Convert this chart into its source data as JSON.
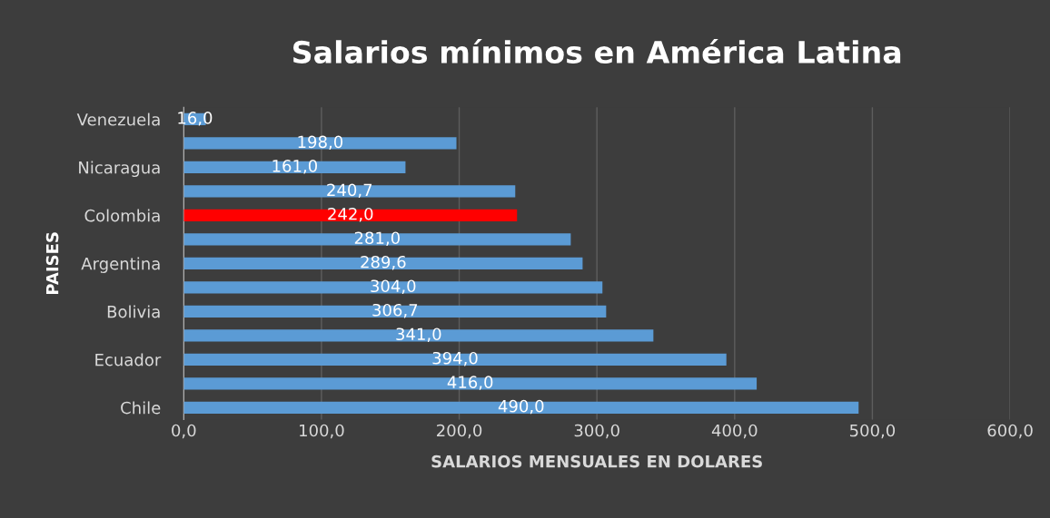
{
  "chart_data": {
    "type": "bar",
    "orientation": "horizontal",
    "title": "Salarios mínimos en América Latina",
    "xlabel": "SALARIOS MENSUALES EN DOLARES",
    "ylabel": "PAISES",
    "categories": [
      "Venezuela",
      null,
      "Nicaragua",
      null,
      "Colombia",
      null,
      "Argentina",
      null,
      "Bolivia",
      null,
      "Ecuador",
      null,
      "Chile"
    ],
    "values": [
      16.0,
      198.0,
      161.0,
      240.7,
      242.0,
      281.0,
      289.6,
      304.0,
      306.7,
      341.0,
      394.0,
      416.0,
      490.0
    ],
    "colors": [
      "#5b9bd5",
      "#5b9bd5",
      "#5b9bd5",
      "#5b9bd5",
      "#ff0000",
      "#5b9bd5",
      "#5b9bd5",
      "#5b9bd5",
      "#5b9bd5",
      "#5b9bd5",
      "#5b9bd5",
      "#5b9bd5",
      "#5b9bd5"
    ],
    "value_labels": [
      "16,0",
      "198,0",
      "161,0",
      "240,7",
      "242,0",
      "281,0",
      "289,6",
      "304,0",
      "306,7",
      "341,0",
      "394,0",
      "416,0",
      "490,0"
    ],
    "xlim": [
      0,
      600
    ],
    "xticks": [
      {
        "value": 0,
        "label": "0,0"
      },
      {
        "value": 100,
        "label": "100,0"
      },
      {
        "value": 200,
        "label": "200,0"
      },
      {
        "value": 300,
        "label": "300,0"
      },
      {
        "value": 400,
        "label": "400,0"
      },
      {
        "value": 500,
        "label": "500,0"
      },
      {
        "value": 600,
        "label": "600,0"
      }
    ],
    "grid": "x",
    "legend": false
  }
}
